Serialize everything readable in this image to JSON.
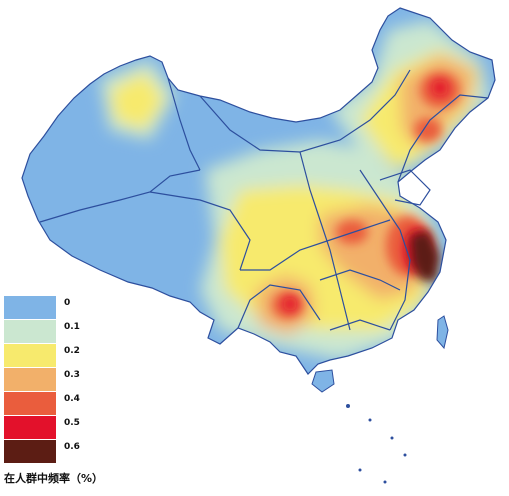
{
  "legend": {
    "title": "在人群中频率（%）",
    "items": [
      {
        "label": "0",
        "color": "#7fb4e6"
      },
      {
        "label": "0.1",
        "color": "#cbe7d0"
      },
      {
        "label": "0.2",
        "color": "#f7ea6d"
      },
      {
        "label": "0.3",
        "color": "#f2b06a"
      },
      {
        "label": "0.4",
        "color": "#ea5d3d"
      },
      {
        "label": "0.5",
        "color": "#e3112b"
      },
      {
        "label": "0.6",
        "color": "#5c1d14"
      }
    ]
  },
  "colors": {
    "level0": "#7fb4e6",
    "level1": "#cbe7d0",
    "level2": "#f7ea6d",
    "level3": "#f2b06a",
    "level4": "#ea5d3d",
    "level5": "#e3112b",
    "level6": "#5c1d14",
    "border": "#2d4f9e"
  }
}
